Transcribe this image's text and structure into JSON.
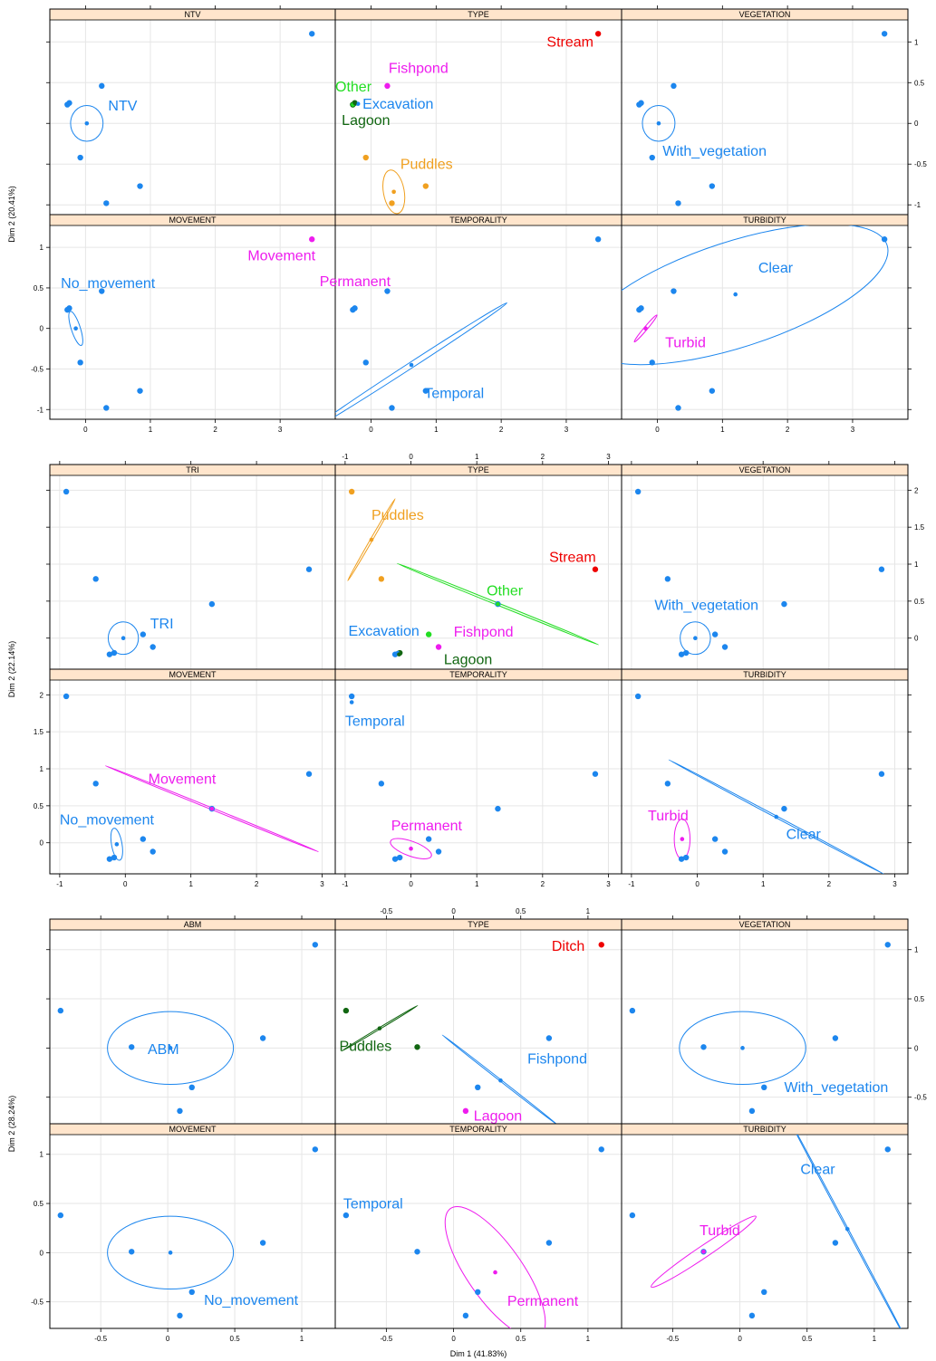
{
  "colors": {
    "blue": "#1c86ee",
    "magenta": "#ee1cee",
    "red": "#ee0000",
    "green": "#22dd22",
    "darkgreen": "#116611",
    "orange": "#f0a020",
    "strip": "#ffe5cc"
  },
  "chart_data": [
    {
      "type": "scatter",
      "group": "NTV",
      "xlabel": "",
      "ylabel": "Dim 2 (20.41%)",
      "xlim": [
        -0.55,
        3.85
      ],
      "ylim": [
        -1.12,
        1.27
      ],
      "xticks": [
        0,
        1,
        2,
        3
      ],
      "top_xticks": [
        -1,
        0,
        1,
        2,
        3
      ],
      "yticks": [
        -1.0,
        -0.5,
        0.0,
        0.5,
        1.0
      ],
      "points": [
        [
          -0.28,
          0.23
        ],
        [
          -0.25,
          0.25
        ],
        [
          0.25,
          0.46
        ],
        [
          -0.08,
          -0.42
        ],
        [
          0.32,
          -0.98
        ],
        [
          0.84,
          -0.77
        ],
        [
          3.49,
          1.1
        ]
      ],
      "panels": [
        {
          "title": "NTV",
          "categories": [
            {
              "label": "NTV",
              "color": "#1c86ee",
              "center": [
                0.02,
                0.0
              ],
              "ellipse": {
                "rx": 0.25,
                "ry": 0.22,
                "angle": 0
              },
              "label_pos": [
                0.35,
                0.16
              ]
            }
          ]
        },
        {
          "title": "TYPE",
          "categories": [
            {
              "label": "Stream",
              "color": "#ee0000",
              "center": [
                3.49,
                1.1
              ],
              "label_pos": [
                2.7,
                0.94
              ]
            },
            {
              "label": "Fishpond",
              "color": "#ee1cee",
              "center": [
                0.25,
                0.46
              ],
              "label_pos": [
                0.27,
                0.62
              ]
            },
            {
              "label": "Other",
              "color": "#22dd22",
              "center": [
                -0.28,
                0.23
              ],
              "label_pos": [
                -0.55,
                0.39
              ]
            },
            {
              "label": "Excavation",
              "color": "#1c86ee",
              "center": [
                -0.2,
                0.24
              ],
              "label_pos": [
                -0.13,
                0.18
              ]
            },
            {
              "label": "Lagoon",
              "color": "#116611",
              "center": [
                -0.25,
                0.25
              ],
              "label_pos": [
                -0.45,
                -0.02
              ]
            },
            {
              "label": "Puddles",
              "color": "#f0a020",
              "center": [
                0.35,
                -0.84
              ],
              "points": [
                [
                  -0.08,
                  -0.42
                ],
                [
                  0.84,
                  -0.77
                ],
                [
                  0.32,
                  -0.98
                ]
              ],
              "ellipse": {
                "rx": 0.16,
                "ry": 0.27,
                "angle": -10
              },
              "label_pos": [
                0.45,
                -0.56
              ]
            }
          ]
        },
        {
          "title": "VEGETATION",
          "categories": [
            {
              "label": "With_vegetation",
              "color": "#1c86ee",
              "center": [
                0.02,
                0.0
              ],
              "ellipse": {
                "rx": 0.25,
                "ry": 0.22,
                "angle": 0
              },
              "label_pos": [
                0.08,
                -0.4
              ]
            }
          ]
        },
        {
          "title": "MOVEMENT",
          "categories": [
            {
              "label": "Movement",
              "color": "#ee1cee",
              "center": [
                3.49,
                1.1
              ],
              "label_pos": [
                2.5,
                0.84
              ]
            },
            {
              "label": "No_movement",
              "color": "#1c86ee",
              "center": [
                -0.15,
                0.0
              ],
              "ellipse": {
                "rx": 0.07,
                "ry": 0.22,
                "angle": -18
              },
              "label_pos": [
                -0.38,
                0.5
              ]
            }
          ]
        },
        {
          "title": "TEMPORALITY",
          "categories": [
            {
              "label": "Permanent",
              "color": "#ee1cee",
              "center": [
                -0.73,
                0.2
              ],
              "ellipse": {
                "rx": 0.09,
                "ry": 0.08,
                "angle": 0
              },
              "label_pos": [
                -0.79,
                0.52
              ]
            },
            {
              "label": "Temporal",
              "color": "#1c86ee",
              "center": [
                0.62,
                -0.45
              ],
              "ellipse": {
                "rx": 1.75,
                "ry": 0.035,
                "angle": -33
              },
              "label_pos": [
                0.82,
                -0.86
              ]
            }
          ]
        },
        {
          "title": "TURBIDITY",
          "categories": [
            {
              "label": "Clear",
              "color": "#1c86ee",
              "center": [
                1.2,
                0.42
              ],
              "ellipse": {
                "rx": 2.45,
                "ry": 0.65,
                "angle": -18
              },
              "label_pos": [
                1.55,
                0.69
              ]
            },
            {
              "label": "Turbid",
              "color": "#ee1cee",
              "center": [
                -0.18,
                0.0
              ],
              "ellipse": {
                "rx": 0.27,
                "ry": 0.02,
                "angle": -50
              },
              "label_pos": [
                0.12,
                -0.23
              ]
            }
          ]
        }
      ]
    },
    {
      "type": "scatter",
      "group": "TRI",
      "xlabel": "",
      "ylabel": "Dim 2 (22.14%)",
      "xlim": [
        -1.15,
        3.2
      ],
      "ylim": [
        -0.42,
        2.2
      ],
      "xticks": [
        -1,
        0,
        1,
        2,
        3
      ],
      "top_xticks": [
        -0.5,
        0.0,
        0.5,
        1.0
      ],
      "yticks": [
        0.0,
        0.5,
        1.0,
        1.5,
        2.0
      ],
      "points": [
        [
          -0.9,
          1.98
        ],
        [
          -0.45,
          0.8
        ],
        [
          1.32,
          0.46
        ],
        [
          2.8,
          0.93
        ],
        [
          0.27,
          0.05
        ],
        [
          0.42,
          -0.12
        ],
        [
          -0.17,
          -0.2
        ],
        [
          -0.24,
          -0.22
        ]
      ],
      "panels": [
        {
          "title": "TRI",
          "categories": [
            {
              "label": "TRI",
              "color": "#1c86ee",
              "center": [
                -0.03,
                0.0
              ],
              "ellipse": {
                "rx": 0.23,
                "ry": 0.22,
                "angle": 0
              },
              "label_pos": [
                0.38,
                0.13
              ]
            }
          ]
        },
        {
          "title": "TYPE",
          "categories": [
            {
              "label": "Puddles",
              "color": "#f0a020",
              "center": [
                -0.6,
                1.33
              ],
              "points": [
                [
                  -0.9,
                  1.98
                ],
                [
                  -0.45,
                  0.8
                ]
              ],
              "ellipse": {
                "rx": 0.72,
                "ry": 0.015,
                "angle": -60
              },
              "label_pos": [
                -0.6,
                1.6
              ]
            },
            {
              "label": "Stream",
              "color": "#ee0000",
              "center": [
                2.8,
                0.93
              ],
              "label_pos": [
                2.1,
                1.03
              ]
            },
            {
              "label": "Other",
              "color": "#22dd22",
              "center": [
                1.32,
                0.46
              ],
              "points": [
                [
                  0.3,
                  0.06
                ]
              ],
              "ellipse": {
                "rx": 1.65,
                "ry": 0.015,
                "angle": 22
              },
              "label_pos": [
                1.15,
                0.58
              ]
            },
            {
              "label": "Excavation",
              "color": "#1c86ee",
              "center": [
                -0.2,
                -0.2
              ],
              "label_pos": [
                -0.95,
                0.03
              ]
            },
            {
              "label": "Fishpond",
              "color": "#ee1cee",
              "center": [
                0.42,
                -0.12
              ],
              "label_pos": [
                0.65,
                0.02
              ]
            },
            {
              "label": "Lagoon",
              "color": "#116611",
              "center": [
                -0.18,
                -0.22
              ],
              "label_pos": [
                0.5,
                -0.35
              ]
            }
          ]
        },
        {
          "title": "VEGETATION",
          "categories": [
            {
              "label": "With_vegetation",
              "color": "#1c86ee",
              "center": [
                -0.03,
                0.0
              ],
              "ellipse": {
                "rx": 0.23,
                "ry": 0.22,
                "angle": 0
              },
              "label_pos": [
                -0.65,
                0.38
              ]
            }
          ]
        },
        {
          "title": "MOVEMENT",
          "categories": [
            {
              "label": "Movement",
              "color": "#ee1cee",
              "center": [
                1.32,
                0.46
              ],
              "ellipse": {
                "rx": 1.75,
                "ry": 0.012,
                "angle": 22
              },
              "label_pos": [
                0.35,
                0.8
              ]
            },
            {
              "label": "No_movement",
              "color": "#1c86ee",
              "center": [
                -0.13,
                -0.02
              ],
              "ellipse": {
                "rx": 0.08,
                "ry": 0.22,
                "angle": -10
              },
              "label_pos": [
                -1.0,
                0.25
              ]
            }
          ]
        },
        {
          "title": "TEMPORALITY",
          "categories": [
            {
              "label": "Temporal",
              "color": "#1c86ee",
              "center": [
                -0.9,
                1.9
              ],
              "label_pos": [
                -1.0,
                1.58
              ]
            },
            {
              "label": "Permanent",
              "color": "#ee1cee",
              "center": [
                0.0,
                -0.08
              ],
              "ellipse": {
                "rx": 0.33,
                "ry": 0.1,
                "angle": 20
              },
              "label_pos": [
                -0.3,
                0.17
              ]
            }
          ]
        },
        {
          "title": "TURBIDITY",
          "categories": [
            {
              "label": "Turbid",
              "color": "#ee1cee",
              "center": [
                -0.23,
                0.05
              ],
              "ellipse": {
                "rx": 0.12,
                "ry": 0.27,
                "angle": 0
              },
              "label_pos": [
                -0.75,
                0.3
              ]
            },
            {
              "label": "Clear",
              "color": "#1c86ee",
              "center": [
                1.2,
                0.35
              ],
              "ellipse": {
                "rx": 1.85,
                "ry": 0.012,
                "angle": 28
              },
              "label_pos": [
                1.35,
                0.05
              ]
            }
          ]
        }
      ]
    },
    {
      "type": "scatter",
      "group": "ABM",
      "xlabel": "Dim 1 (41.83%)",
      "ylabel": "Dim 2 (28.24%)",
      "xlim": [
        -0.88,
        1.25
      ],
      "ylim": [
        -0.77,
        1.2
      ],
      "xticks": [
        -0.5,
        0.0,
        0.5,
        1.0
      ],
      "top_xticks": [],
      "yticks": [
        -0.5,
        0.0,
        0.5,
        1.0
      ],
      "points": [
        [
          -0.8,
          0.38
        ],
        [
          -0.27,
          0.01
        ],
        [
          0.71,
          0.1
        ],
        [
          1.1,
          1.05
        ],
        [
          0.18,
          -0.4
        ],
        [
          0.09,
          -0.64
        ]
      ],
      "panels": [
        {
          "title": "ABM",
          "categories": [
            {
              "label": "ABM",
              "color": "#1c86ee",
              "center": [
                0.02,
                0.0
              ],
              "ellipse": {
                "rx": 0.47,
                "ry": 0.37,
                "angle": 0
              },
              "label_pos": [
                -0.15,
                -0.06
              ]
            }
          ]
        },
        {
          "title": "TYPE",
          "categories": [
            {
              "label": "Ditch",
              "color": "#ee0000",
              "center": [
                1.1,
                1.05
              ],
              "label_pos": [
                0.73,
                0.99
              ]
            },
            {
              "label": "Puddles",
              "color": "#116611",
              "center": [
                -0.55,
                0.2
              ],
              "points": [
                [
                  -0.8,
                  0.38
                ],
                [
                  -0.27,
                  0.01
                ]
              ],
              "ellipse": {
                "rx": 0.33,
                "ry": 0.008,
                "angle": -31
              },
              "label_pos": [
                -0.85,
                -0.03
              ]
            },
            {
              "label": "Fishpond",
              "color": "#1c86ee",
              "center": [
                0.35,
                -0.33
              ],
              "points": [
                [
                  0.71,
                  0.1
                ],
                [
                  0.18,
                  -0.4
                ]
              ],
              "ellipse": {
                "rx": 0.55,
                "ry": 0.008,
                "angle": 38
              },
              "label_pos": [
                0.55,
                -0.16
              ]
            },
            {
              "label": "Lagoon",
              "color": "#ee1cee",
              "center": [
                0.09,
                -0.64
              ],
              "label_pos": [
                0.15,
                -0.74
              ]
            }
          ]
        },
        {
          "title": "VEGETATION",
          "categories": [
            {
              "label": "With_vegetation",
              "color": "#1c86ee",
              "center": [
                0.02,
                0.0
              ],
              "ellipse": {
                "rx": 0.47,
                "ry": 0.37,
                "angle": 0
              },
              "label_pos": [
                0.33,
                -0.45
              ]
            }
          ]
        },
        {
          "title": "MOVEMENT",
          "categories": [
            {
              "label": "No_movement",
              "color": "#1c86ee",
              "center": [
                0.02,
                0.0
              ],
              "ellipse": {
                "rx": 0.47,
                "ry": 0.37,
                "angle": 0
              },
              "label_pos": [
                0.27,
                -0.53
              ]
            }
          ]
        },
        {
          "title": "TEMPORALITY",
          "categories": [
            {
              "label": "Temporal",
              "color": "#1c86ee",
              "center": [
                -0.8,
                0.38
              ],
              "label_pos": [
                -0.82,
                0.45
              ]
            },
            {
              "label": "Permanent",
              "color": "#ee1cee",
              "center": [
                0.31,
                -0.2
              ],
              "ellipse": {
                "rx": 0.58,
                "ry": 0.28,
                "angle": 55
              },
              "label_pos": [
                0.4,
                -0.54
              ]
            }
          ]
        },
        {
          "title": "TURBIDITY",
          "categories": [
            {
              "label": "Turbid",
              "color": "#ee1cee",
              "center": [
                -0.27,
                0.01
              ],
              "ellipse": {
                "rx": 0.47,
                "ry": 0.06,
                "angle": -34
              },
              "label_pos": [
                -0.3,
                0.18
              ]
            },
            {
              "label": "Clear",
              "color": "#1c86ee",
              "center": [
                0.8,
                0.24
              ],
              "ellipse": {
                "rx": 1.0,
                "ry": 0.007,
                "angle": 62
              },
              "label_pos": [
                0.45,
                0.8
              ]
            }
          ]
        }
      ]
    }
  ]
}
